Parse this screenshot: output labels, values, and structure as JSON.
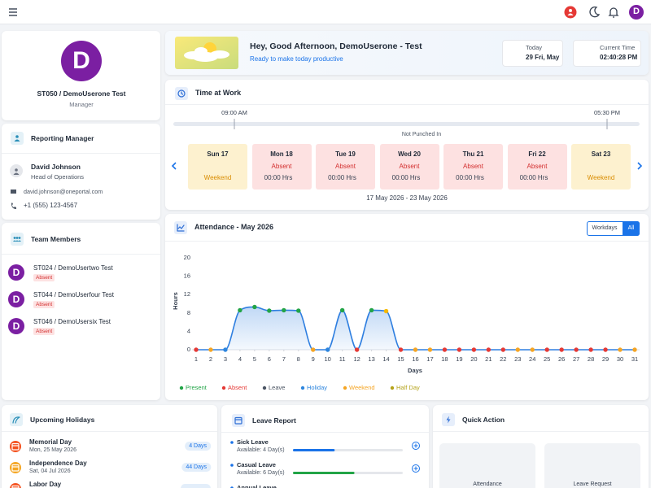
{
  "topbar": {
    "avatar_letter": "D"
  },
  "profile": {
    "avatar_letter": "D",
    "name": "ST050 / DemoUserone Test",
    "role": "Manager"
  },
  "reporting_manager": {
    "title": "Reporting Manager",
    "name": "David Johnson",
    "position": "Head of Operations",
    "email": "david.johnson@oneportal.com",
    "phone": "+1 (555) 123-4567"
  },
  "team_members": {
    "title": "Team Members",
    "members": [
      {
        "avatar_letter": "D",
        "name": "ST024 / DemoUsertwo Test",
        "status": "Absent"
      },
      {
        "avatar_letter": "D",
        "name": "ST044 / DemoUserfour Test",
        "status": "Absent"
      },
      {
        "avatar_letter": "D",
        "name": "ST046 / DemoUsersix Test",
        "status": "Absent"
      }
    ]
  },
  "greeting": {
    "title": "Hey, Good Afternoon, DemoUserone - Test",
    "subtitle": "Ready to make today productive",
    "today_label": "Today",
    "today_value": "29 Fri, May",
    "time_label": "Current Time",
    "time_value": "02:40:28 PM"
  },
  "time_at_work": {
    "title": "Time at Work",
    "start": "09:00 AM",
    "end": "05:30 PM",
    "status": "Not Punched In",
    "days": [
      {
        "day": "Sun 17",
        "status": "Weekend"
      },
      {
        "day": "Mon 18",
        "status": "Absent",
        "hours": "00:00 Hrs"
      },
      {
        "day": "Tue 19",
        "status": "Absent",
        "hours": "00:00 Hrs"
      },
      {
        "day": "Wed 20",
        "status": "Absent",
        "hours": "00:00 Hrs"
      },
      {
        "day": "Thu 21",
        "status": "Absent",
        "hours": "00:00 Hrs"
      },
      {
        "day": "Fri 22",
        "status": "Absent",
        "hours": "00:00 Hrs"
      },
      {
        "day": "Sat 23",
        "status": "Weekend"
      }
    ],
    "range": "17 May 2026 - 23 May 2026"
  },
  "attendance_toggles": [
    "Workdays",
    "All"
  ],
  "chart_data": {
    "type": "line",
    "title": "Attendance - May 2026",
    "y_label": "Hours",
    "x_label": "Days",
    "color": "#2f7fe0",
    "grid": false,
    "x": [
      1,
      2,
      3,
      4,
      5,
      6,
      7,
      8,
      9,
      10,
      11,
      12,
      13,
      14,
      15,
      16,
      17,
      18,
      19,
      20,
      21,
      22,
      23,
      24,
      25,
      26,
      27,
      28,
      29,
      30,
      31
    ],
    "values": [
      0,
      0,
      0,
      8.6,
      9.3,
      8.5,
      8.6,
      8.5,
      0,
      0,
      8.6,
      0,
      8.6,
      8.4,
      0,
      0,
      0,
      0,
      0,
      0,
      0,
      0,
      0,
      0,
      0,
      0,
      0,
      0,
      0,
      0,
      0
    ],
    "point_colors": [
      "#e53935",
      "#f5a524",
      "#2e86de",
      "#22a447",
      "#22a447",
      "#22a447",
      "#22a447",
      "#22a447",
      "#f5a524",
      "#2e86de",
      "#22a447",
      "#e53935",
      "#22a447",
      "#f5b800",
      "#e53935",
      "#f5a524",
      "#f5a524",
      "#e53935",
      "#e53935",
      "#e53935",
      "#e53935",
      "#e53935",
      "#f5a524",
      "#f5a524",
      "#e53935",
      "#e53935",
      "#e53935",
      "#e53935",
      "#e53935",
      "#f5a524",
      "#f5a524"
    ],
    "xlim": [
      1,
      31
    ],
    "xticks": [
      1,
      2,
      3,
      4,
      5,
      6,
      7,
      8,
      9,
      10,
      11,
      12,
      13,
      14,
      15,
      16,
      17,
      18,
      19,
      20,
      21,
      22,
      23,
      24,
      25,
      26,
      27,
      28,
      29,
      30,
      31
    ],
    "ylim": [
      0,
      20
    ],
    "yticks": [
      0,
      4,
      8,
      12,
      16,
      20
    ],
    "legend": [
      {
        "name": "Present",
        "color": "#22a447"
      },
      {
        "name": "Absent",
        "color": "#e53935"
      },
      {
        "name": "Leave",
        "color": "#4b5563"
      },
      {
        "name": "Holiday",
        "color": "#2e86de"
      },
      {
        "name": "Weekend",
        "color": "#f5a524"
      },
      {
        "name": "Half Day",
        "color": "#b5a31a"
      }
    ]
  },
  "holidays": {
    "title": "Upcoming Holidays",
    "items": [
      {
        "name": "Memorial Day",
        "date": "Mon, 25 May 2026",
        "days": "4 Days"
      },
      {
        "name": "Independence Day",
        "date": "Sat, 04 Jul 2026",
        "days": "44 Days"
      },
      {
        "name": "Labor Day"
      }
    ]
  },
  "leave_report": {
    "title": "Leave Report",
    "items": [
      {
        "name": "Sick Leave",
        "available": "Available: 4 Day(s)",
        "progress": 38
      },
      {
        "name": "Casual Leave",
        "available": "Available: 6 Day(s)",
        "progress": 56
      },
      {
        "name": "Annual Leave"
      }
    ]
  },
  "quick_action": {
    "title": "Quick Action",
    "actions": [
      "Attendance",
      "Leave Request"
    ]
  }
}
